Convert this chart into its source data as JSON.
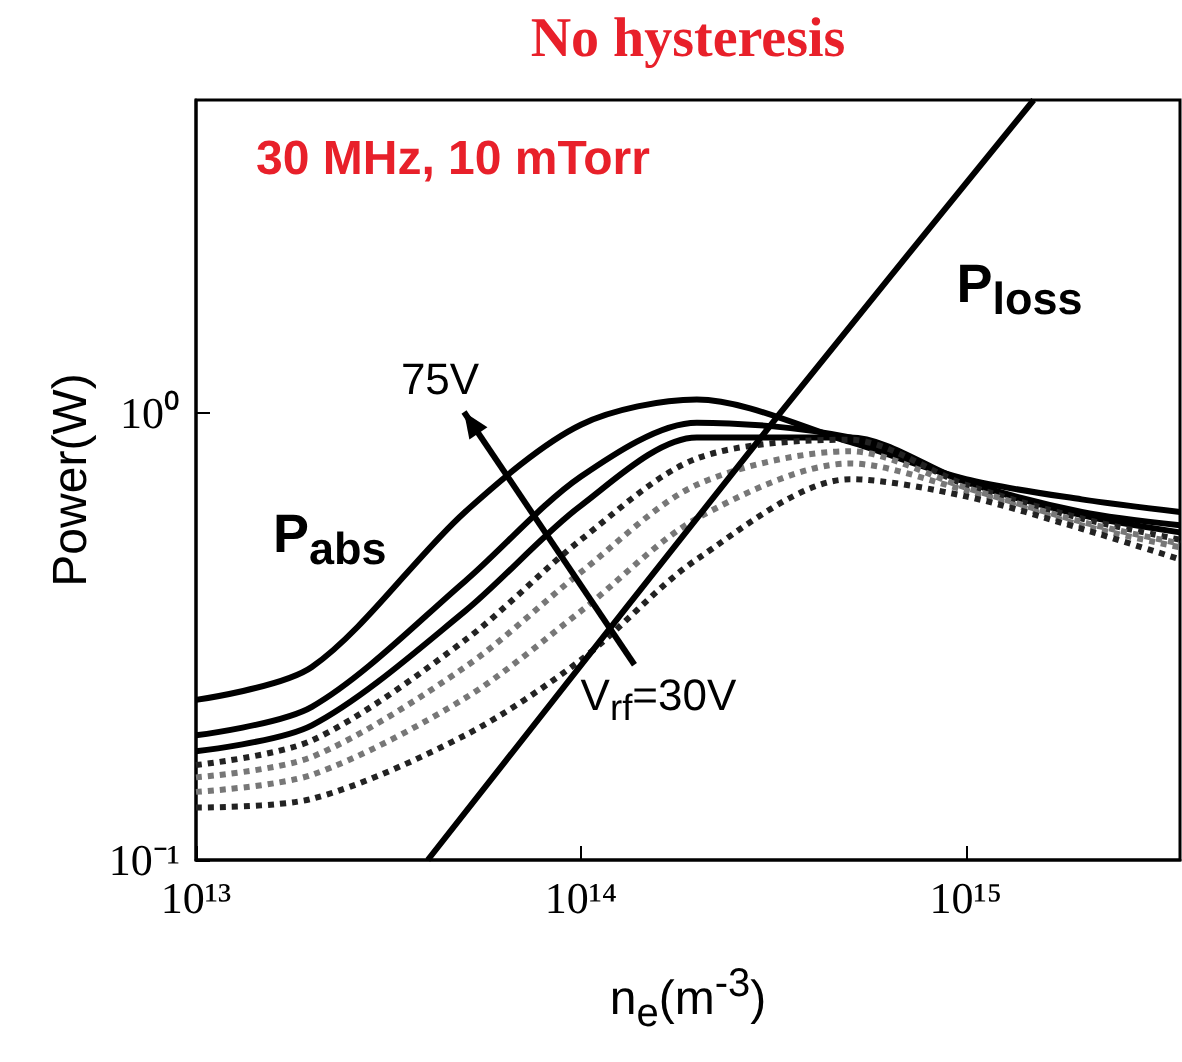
{
  "chart_data": {
    "type": "line",
    "title": "No hysteresis",
    "xlabel": "n$_{e}$(m$^{-3}$)",
    "ylabel": "Power(W)",
    "log": "xy",
    "grid": false,
    "marker": "none",
    "xlim": [
      10000000000000.0,
      3600000000000000.0
    ],
    "ylim": [
      0.1,
      5
    ],
    "xticks": [
      {
        "value": 10000000000000.0,
        "label": "10¹³"
      },
      {
        "value": 100000000000000.0,
        "label": "10¹⁴"
      },
      {
        "value": 1000000000000000.0,
        "label": "10¹⁵"
      }
    ],
    "yticks": [
      {
        "value": 0.1,
        "label": "10⁻¹"
      },
      {
        "value": 1,
        "label": "10⁰"
      }
    ],
    "x": [
      10000000000000.0,
      20000000000000.0,
      50000000000000.0,
      100000000000000.0,
      200000000000000.0,
      500000000000000.0,
      1000000000000000.0,
      2000000000000000.0,
      3600000000000000.0
    ],
    "series": [
      {
        "color": "#000000",
        "line_style": "solid",
        "values": [
          0.228,
          0.27,
          0.6,
          0.94,
          1.07,
          0.86,
          0.71,
          0.64,
          0.6
        ]
      },
      {
        "color": "#000000",
        "line_style": "solid",
        "values": [
          0.19,
          0.22,
          0.42,
          0.72,
          0.95,
          0.88,
          0.7,
          0.6,
          0.56
        ]
      },
      {
        "color": "#000000",
        "line_style": "solid",
        "values": [
          0.175,
          0.2,
          0.36,
          0.62,
          0.88,
          0.88,
          0.7,
          0.59,
          0.54
        ]
      },
      {
        "color": "#222222",
        "line_style": "dotted",
        "values": [
          0.163,
          0.185,
          0.31,
          0.52,
          0.79,
          0.87,
          0.69,
          0.58,
          0.52
        ]
      },
      {
        "color": "#777777",
        "line_style": "dotted",
        "values": [
          0.153,
          0.17,
          0.27,
          0.44,
          0.69,
          0.82,
          0.68,
          0.57,
          0.51
        ]
      },
      {
        "color": "#777777",
        "line_style": "dotted",
        "values": [
          0.142,
          0.155,
          0.23,
          0.36,
          0.58,
          0.77,
          0.67,
          0.56,
          0.5
        ]
      },
      {
        "color": "#222222",
        "line_style": "dotted",
        "values": [
          0.131,
          0.137,
          0.19,
          0.28,
          0.47,
          0.71,
          0.65,
          0.55,
          0.47
        ]
      },
      {
        "color": "#000000",
        "line_style": "solid",
        "x": [
          40000000000000.0,
          330000000000000.0,
          1500000000000000.0
        ],
        "values": [
          0.1,
          1,
          5
        ]
      }
    ],
    "annotations": [
      "30 MHz, 10 mTorr",
      "P$_{abs}$",
      "P$_{loss}$",
      "75V",
      "V$_{rf}$=30V"
    ]
  }
}
